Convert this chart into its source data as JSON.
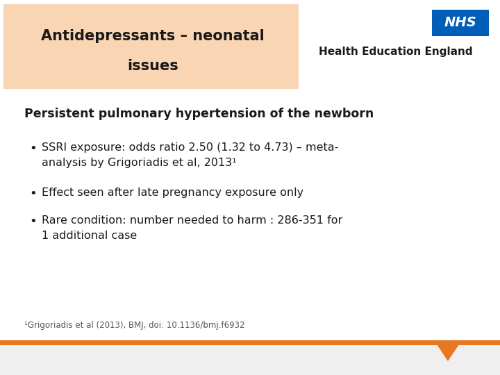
{
  "title_line1": "Antidepressants – neonatal",
  "title_line2": "issues",
  "title_bg_color": "#f9d5b3",
  "title_text_color": "#1a1a1a",
  "section_heading": "Persistent pulmonary hypertension of the newborn",
  "bullet1_line1": "SSRI exposure: odds ratio 2.50 (1.32 to 4.73) – meta-",
  "bullet1_line2": "analysis by Grigoriadis et al, 2013¹",
  "bullet2": "Effect seen after late pregnancy exposure only",
  "bullet3_line1": "Rare condition: number needed to harm : 286-351 for",
  "bullet3_line2": "1 additional case",
  "footnote": "¹Grigoriadis et al (2013), BMJ, doi: 10.1136/bmj.f6932",
  "nhs_box_color": "#005EB8",
  "nhs_text": "NHS",
  "hee_text": "Health Education England",
  "bg_color": "#ffffff",
  "footer_bg_color": "#efefef",
  "orange_color": "#E87722"
}
